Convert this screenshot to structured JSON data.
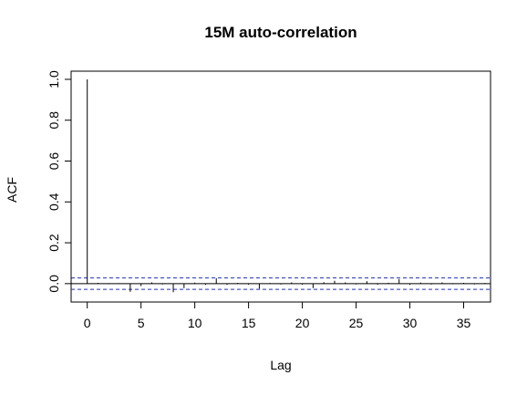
{
  "chart_data": {
    "type": "bar",
    "title": "15M auto-correlation",
    "xlabel": "Lag",
    "ylabel": "ACF",
    "xlim": [
      -1.5,
      37.5
    ],
    "ylim": [
      -0.09,
      1.04
    ],
    "xticks": [
      0,
      5,
      10,
      15,
      20,
      25,
      30,
      35
    ],
    "yticks": [
      0.0,
      0.2,
      0.4,
      0.6,
      0.8,
      1.0
    ],
    "xtick_labels": [
      "0",
      "5",
      "10",
      "15",
      "20",
      "25",
      "30",
      "35"
    ],
    "ytick_labels": [
      "0.0",
      "0.2",
      "0.4",
      "0.6",
      "0.8",
      "1.0"
    ],
    "lags": [
      0,
      1,
      2,
      3,
      4,
      5,
      6,
      7,
      8,
      9,
      10,
      11,
      12,
      13,
      14,
      15,
      16,
      17,
      18,
      19,
      20,
      21,
      22,
      23,
      24,
      25,
      26,
      27,
      28,
      29,
      30,
      31,
      32,
      33,
      34,
      35,
      36,
      37
    ],
    "acf_values": [
      1.0,
      0.004,
      -0.003,
      0.002,
      -0.04,
      -0.012,
      0.006,
      -0.004,
      -0.042,
      -0.022,
      0.005,
      -0.006,
      0.026,
      -0.006,
      0.004,
      -0.005,
      -0.025,
      0.003,
      -0.004,
      0.006,
      -0.005,
      -0.022,
      0.007,
      0.014,
      0.006,
      -0.004,
      0.012,
      -0.005,
      0.004,
      0.022,
      -0.006,
      0.005,
      -0.004,
      0.006,
      -0.003,
      0.004,
      -0.004,
      0.003
    ],
    "confidence_upper": 0.028,
    "confidence_lower": -0.028,
    "grid": false,
    "colors": {
      "spikes": "#000000",
      "confidence_lines": "#1f2fd1",
      "axes": "#000000",
      "zero_line": "#000000"
    }
  }
}
